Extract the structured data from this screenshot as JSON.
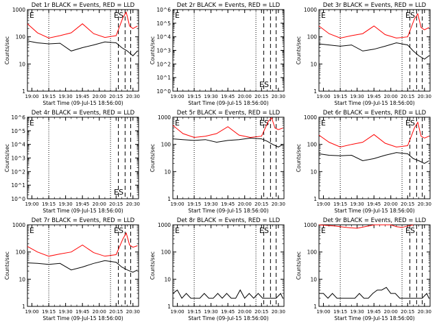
{
  "figure": {
    "start_time_label": "Start Time (09-Jul-15 18:56:00)",
    "ylabel": "Counts/sec",
    "time_ticks": [
      "19:00",
      "19:15",
      "19:30",
      "19:45",
      "20:00",
      "20:15",
      "20:30"
    ]
  },
  "chart_data": [
    {
      "type": "line",
      "title": "Det 1r BLACK = Events, RED = LLD",
      "marks": [
        "E",
        "ES"
      ],
      "yscale": "log",
      "ylim": [
        1,
        1000
      ],
      "yticks": [
        "1",
        "10",
        "100",
        "1000"
      ],
      "xlabel": "Start Time (09-Jul-15 18:56:00)",
      "ylabel": "Counts/sec",
      "series": [
        {
          "color": "#000000",
          "x": [
            "18:56",
            "19:05",
            "19:15",
            "19:25",
            "19:35",
            "19:45",
            "19:55",
            "20:05",
            "20:15",
            "20:20",
            "20:25",
            "20:30",
            "20:34"
          ],
          "y": [
            70,
            60,
            55,
            58,
            30,
            40,
            50,
            65,
            60,
            40,
            30,
            20,
            30
          ]
        },
        {
          "color": "#ff0000",
          "x": [
            "18:56",
            "19:05",
            "19:15",
            "19:25",
            "19:35",
            "19:45",
            "19:55",
            "20:05",
            "20:15",
            "20:21",
            "20:24",
            "20:27",
            "20:30",
            "20:34"
          ],
          "y": [
            300,
            140,
            90,
            110,
            140,
            300,
            130,
            95,
            110,
            500,
            800,
            250,
            200,
            250
          ]
        }
      ]
    },
    {
      "type": "line",
      "title": "Det 2r BLACK = Events, RED = LLD",
      "marks": [
        "E",
        "ES"
      ],
      "yscale": "log",
      "ylim": [
        1,
        1000000
      ],
      "yticks": [
        "10^0",
        "10^1",
        "10^2",
        "10^3",
        "10^4",
        "10^5",
        "10^6"
      ],
      "xlabel": "Start Time (09-Jul-15 18:56:00)",
      "ylabel": "Counts/sec",
      "series": []
    },
    {
      "type": "line",
      "title": "Det 3r BLACK = Events, RED = LLD",
      "marks": [
        "E",
        "ES"
      ],
      "yscale": "log",
      "ylim": [
        1,
        1000
      ],
      "yticks": [
        "1",
        "10",
        "100",
        "1000"
      ],
      "xlabel": "Start Time (09-Jul-15 18:56:00)",
      "ylabel": "Counts/sec",
      "series": [
        {
          "color": "#000000",
          "x": [
            "18:56",
            "19:05",
            "19:15",
            "19:25",
            "19:35",
            "19:45",
            "19:55",
            "20:05",
            "20:15",
            "20:20",
            "20:25",
            "20:30",
            "20:34"
          ],
          "y": [
            55,
            50,
            45,
            50,
            30,
            35,
            45,
            60,
            50,
            30,
            20,
            15,
            20
          ]
        },
        {
          "color": "#ff0000",
          "x": [
            "18:56",
            "19:05",
            "19:15",
            "19:25",
            "19:35",
            "19:45",
            "19:55",
            "20:05",
            "20:15",
            "20:21",
            "20:24",
            "20:27",
            "20:30",
            "20:34"
          ],
          "y": [
            250,
            130,
            90,
            110,
            130,
            250,
            120,
            90,
            100,
            450,
            700,
            220,
            180,
            220
          ]
        }
      ]
    },
    {
      "type": "line",
      "title": "Det 4r BLACK = Events, RED = LLD",
      "marks": [
        "E",
        "ES"
      ],
      "yscale": "log",
      "ylim": [
        1,
        1000000
      ],
      "yticks": [
        "10^0",
        "10^1",
        "10^2",
        "10^3",
        "10^4",
        "10^5",
        "10^6"
      ],
      "xlabel": "Start Time (09-Jul-15 18:56:00)",
      "ylabel": "Counts/sec",
      "series": []
    },
    {
      "type": "line",
      "title": "Det 5r BLACK = Events, RED = LLD",
      "marks": [
        "E",
        "ES"
      ],
      "yscale": "log",
      "ylim": [
        1,
        1000
      ],
      "yticks": [
        "1",
        "10",
        "100",
        "1000"
      ],
      "xlabel": "Start Time (09-Jul-15 18:56:00)",
      "ylabel": "Counts/sec",
      "series": [
        {
          "color": "#000000",
          "x": [
            "18:56",
            "19:05",
            "19:15",
            "19:25",
            "19:35",
            "19:45",
            "19:55",
            "20:05",
            "20:15",
            "20:20",
            "20:25",
            "20:30",
            "20:34"
          ],
          "y": [
            160,
            150,
            140,
            150,
            120,
            140,
            150,
            170,
            160,
            130,
            100,
            80,
            100
          ]
        },
        {
          "color": "#ff0000",
          "x": [
            "18:56",
            "19:05",
            "19:15",
            "19:25",
            "19:35",
            "19:45",
            "19:55",
            "20:05",
            "20:15",
            "20:21",
            "20:24",
            "20:27",
            "20:30",
            "20:34"
          ],
          "y": [
            500,
            250,
            180,
            200,
            250,
            450,
            220,
            180,
            200,
            700,
            950,
            400,
            350,
            400
          ]
        }
      ]
    },
    {
      "type": "line",
      "title": "Det 6r BLACK = Events, RED = LLD",
      "marks": [
        "E",
        "ES"
      ],
      "yscale": "log",
      "ylim": [
        1,
        1000
      ],
      "yticks": [
        "1",
        "10",
        "100",
        "1000"
      ],
      "xlabel": "Start Time (09-Jul-15 18:56:00)",
      "ylabel": "Counts/sec",
      "series": [
        {
          "color": "#000000",
          "x": [
            "18:56",
            "19:05",
            "19:15",
            "19:25",
            "19:35",
            "19:45",
            "19:55",
            "20:05",
            "20:15",
            "20:20",
            "20:25",
            "20:30",
            "20:34"
          ],
          "y": [
            45,
            40,
            38,
            40,
            25,
            30,
            40,
            50,
            45,
            30,
            25,
            20,
            25
          ]
        },
        {
          "color": "#ff0000",
          "x": [
            "18:56",
            "19:05",
            "19:15",
            "19:25",
            "19:35",
            "19:45",
            "19:55",
            "20:05",
            "20:15",
            "20:21",
            "20:24",
            "20:27",
            "20:30",
            "20:34"
          ],
          "y": [
            220,
            120,
            80,
            100,
            120,
            230,
            110,
            80,
            90,
            400,
            650,
            200,
            170,
            200
          ]
        }
      ]
    },
    {
      "type": "line",
      "title": "Det 7r BLACK = Events, RED = LLD",
      "marks": [
        "E",
        "ES"
      ],
      "yscale": "log",
      "ylim": [
        1,
        1000
      ],
      "yticks": [
        "1",
        "10",
        "100",
        "1000"
      ],
      "xlabel": "Start Time (09-Jul-15 18:56:00)",
      "ylabel": "Counts/sec",
      "series": [
        {
          "color": "#000000",
          "x": [
            "18:56",
            "19:05",
            "19:15",
            "19:25",
            "19:35",
            "19:45",
            "19:55",
            "20:05",
            "20:15",
            "20:20",
            "20:25",
            "20:30",
            "20:34"
          ],
          "y": [
            40,
            38,
            35,
            38,
            22,
            28,
            38,
            48,
            42,
            28,
            22,
            18,
            22
          ]
        },
        {
          "color": "#ff0000",
          "x": [
            "18:56",
            "19:05",
            "19:15",
            "19:25",
            "19:35",
            "19:45",
            "19:55",
            "20:05",
            "20:15",
            "20:21",
            "20:24",
            "20:27",
            "20:30",
            "20:34"
          ],
          "y": [
            160,
            100,
            70,
            85,
            100,
            180,
            95,
            70,
            80,
            300,
            500,
            180,
            150,
            170
          ]
        }
      ]
    },
    {
      "type": "line",
      "title": "Det 8r BLACK = Events, RED = LLD",
      "marks": [
        "E",
        "ES"
      ],
      "yscale": "log",
      "ylim": [
        1,
        1000
      ],
      "yticks": [
        "1",
        "10",
        "100",
        "1000"
      ],
      "xlabel": "Start Time (09-Jul-15 18:56:00)",
      "ylabel": "Counts/sec",
      "series": [
        {
          "color": "#000000",
          "x": [
            "18:56",
            "19:00",
            "19:04",
            "19:08",
            "19:12",
            "19:16",
            "19:20",
            "19:24",
            "19:28",
            "19:32",
            "19:36",
            "19:40",
            "19:44",
            "19:48",
            "19:52",
            "19:56",
            "20:00",
            "20:04",
            "20:08",
            "20:12",
            "20:16",
            "20:20",
            "20:24",
            "20:28",
            "20:32",
            "20:34"
          ],
          "y": [
            3,
            4,
            2,
            3,
            2,
            2,
            2,
            3,
            2,
            2,
            3,
            2,
            3,
            2,
            2,
            4,
            2,
            3,
            2,
            3,
            2,
            2,
            2,
            2,
            3,
            2
          ]
        }
      ]
    },
    {
      "type": "line",
      "title": "Det 9r BLACK = Events, RED = LLD",
      "marks": [
        "E",
        "ES"
      ],
      "yscale": "log",
      "ylim": [
        1,
        1000
      ],
      "yticks": [
        "1",
        "10",
        "100",
        "1000"
      ],
      "xlabel": "Start Time (09-Jul-15 18:56:00)",
      "ylabel": "Counts/sec",
      "series": [
        {
          "color": "#000000",
          "x": [
            "18:56",
            "19:00",
            "19:04",
            "19:08",
            "19:12",
            "19:16",
            "19:20",
            "19:24",
            "19:28",
            "19:32",
            "19:36",
            "19:40",
            "19:44",
            "19:48",
            "19:52",
            "19:56",
            "20:00",
            "20:04",
            "20:08",
            "20:12",
            "20:16",
            "20:20",
            "20:24",
            "20:28",
            "20:32",
            "20:34"
          ],
          "y": [
            3,
            3,
            2,
            3,
            2,
            2,
            2,
            2,
            2,
            3,
            2,
            2,
            3,
            4,
            4,
            5,
            3,
            3,
            2,
            2,
            2,
            2,
            2,
            2,
            3,
            2
          ]
        },
        {
          "color": "#ff0000",
          "x": [
            "18:56",
            "19:10",
            "19:20",
            "19:30",
            "19:40",
            "19:45",
            "19:50",
            "20:00",
            "20:05",
            "20:10",
            "20:15",
            "20:20"
          ],
          "y": [
            1000,
            900,
            800,
            750,
            900,
            1000,
            1000,
            1000,
            850,
            800,
            900,
            1000
          ]
        }
      ]
    }
  ]
}
